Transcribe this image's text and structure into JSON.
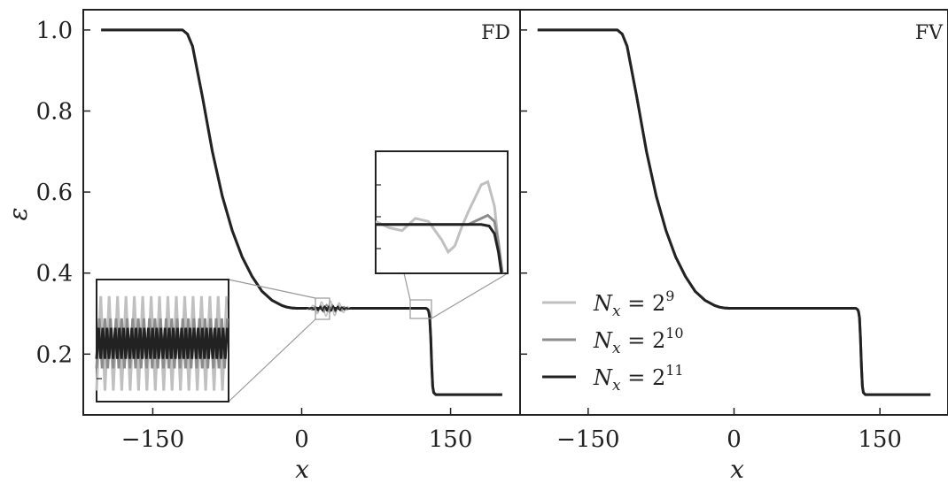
{
  "chart_data": {
    "type": "line",
    "ylabel": "ε",
    "xlabel": "x",
    "xlim": [
      -220,
      220
    ],
    "ylim": [
      0.05,
      1.05
    ],
    "xticks": [
      -150,
      0,
      150
    ],
    "xtick_labels": [
      "−150",
      "0",
      "150"
    ],
    "yticks": [
      0.2,
      0.4,
      0.6,
      0.8,
      1.0
    ],
    "ytick_labels": [
      "0.2",
      "0.4",
      "0.6",
      "0.8",
      "1.0"
    ],
    "colors": {
      "light": "#c0c0c0",
      "medium": "#8c8c8c",
      "dark": "#222222"
    },
    "legend": {
      "position": "lower-left of right panel",
      "entries": [
        {
          "pre": "N",
          "sub": "x",
          "mid": " = 2",
          "sup": "9"
        },
        {
          "pre": "N",
          "sub": "x",
          "mid": " = 2",
          "sup": "10"
        },
        {
          "pre": "N",
          "sub": "x",
          "mid": " = 2",
          "sup": "11"
        }
      ]
    },
    "profile": {
      "x": [
        -202,
        -170,
        -120,
        -115,
        -110,
        -100,
        -90,
        -80,
        -70,
        -60,
        -50,
        -40,
        -30,
        -20,
        -15,
        -10,
        -5,
        0,
        20,
        60,
        100,
        120,
        125,
        126,
        127,
        128,
        129,
        130,
        131,
        132,
        133,
        135,
        140,
        180,
        202
      ],
      "y": [
        1.0,
        1.0,
        1.0,
        0.99,
        0.96,
        0.835,
        0.7,
        0.59,
        0.505,
        0.44,
        0.392,
        0.355,
        0.333,
        0.32,
        0.316,
        0.314,
        0.313,
        0.313,
        0.313,
        0.313,
        0.313,
        0.313,
        0.313,
        0.312,
        0.31,
        0.305,
        0.29,
        0.24,
        0.17,
        0.12,
        0.105,
        0.1,
        0.1,
        0.1,
        0.1
      ]
    },
    "panels": [
      {
        "label": "FD",
        "has_ytick_labels": true,
        "has_legend": false,
        "insets": [
          {
            "name": "plateau",
            "zoom_xlim": [
              -10,
              60
            ],
            "zoom_ylim": [
              0.302,
              0.324
            ],
            "series": [
              {
                "color_key": "light",
                "mean": 0.3125,
                "amp": 0.0085,
                "period": 8.9
              },
              {
                "color_key": "medium",
                "mean": 0.3125,
                "amp": 0.0045,
                "period": 5.9
              },
              {
                "color_key": "dark",
                "mean": 0.3125,
                "amp": 0.0028,
                "period": 4.4
              }
            ]
          },
          {
            "name": "shock-front",
            "zoom_xlim": [
              120,
              130
            ],
            "zoom_ylim": [
              0.3,
              0.34
            ],
            "series": [
              {
                "color_key": "light",
                "x": [
                  120,
                  121,
                  122,
                  123,
                  124,
                  125,
                  125.5,
                  126,
                  126.5,
                  127,
                  128,
                  128.5,
                  129,
                  129.3,
                  129.6,
                  130
                ],
                "y": [
                  0.317,
                  0.315,
                  0.314,
                  0.318,
                  0.317,
                  0.311,
                  0.307,
                  0.309,
                  0.315,
                  0.32,
                  0.329,
                  0.33,
                  0.322,
                  0.31,
                  0.3,
                  0.295
                ]
              },
              {
                "color_key": "medium",
                "x": [
                  120,
                  122,
                  124,
                  126,
                  127,
                  127.5,
                  128,
                  128.5,
                  129,
                  129.3,
                  129.6,
                  130
                ],
                "y": [
                  0.316,
                  0.316,
                  0.316,
                  0.316,
                  0.316,
                  0.317,
                  0.318,
                  0.319,
                  0.317,
                  0.31,
                  0.3,
                  0.295
                ]
              },
              {
                "color_key": "dark",
                "x": [
                  120,
                  122,
                  124,
                  126,
                  127,
                  128,
                  128.6,
                  129.0,
                  129.3,
                  129.6,
                  130
                ],
                "y": [
                  0.316,
                  0.316,
                  0.316,
                  0.316,
                  0.316,
                  0.316,
                  0.3155,
                  0.313,
                  0.307,
                  0.298,
                  0.295
                ]
              }
            ]
          }
        ]
      },
      {
        "label": "FV",
        "has_ytick_labels": false,
        "has_legend": true,
        "insets": []
      }
    ]
  }
}
